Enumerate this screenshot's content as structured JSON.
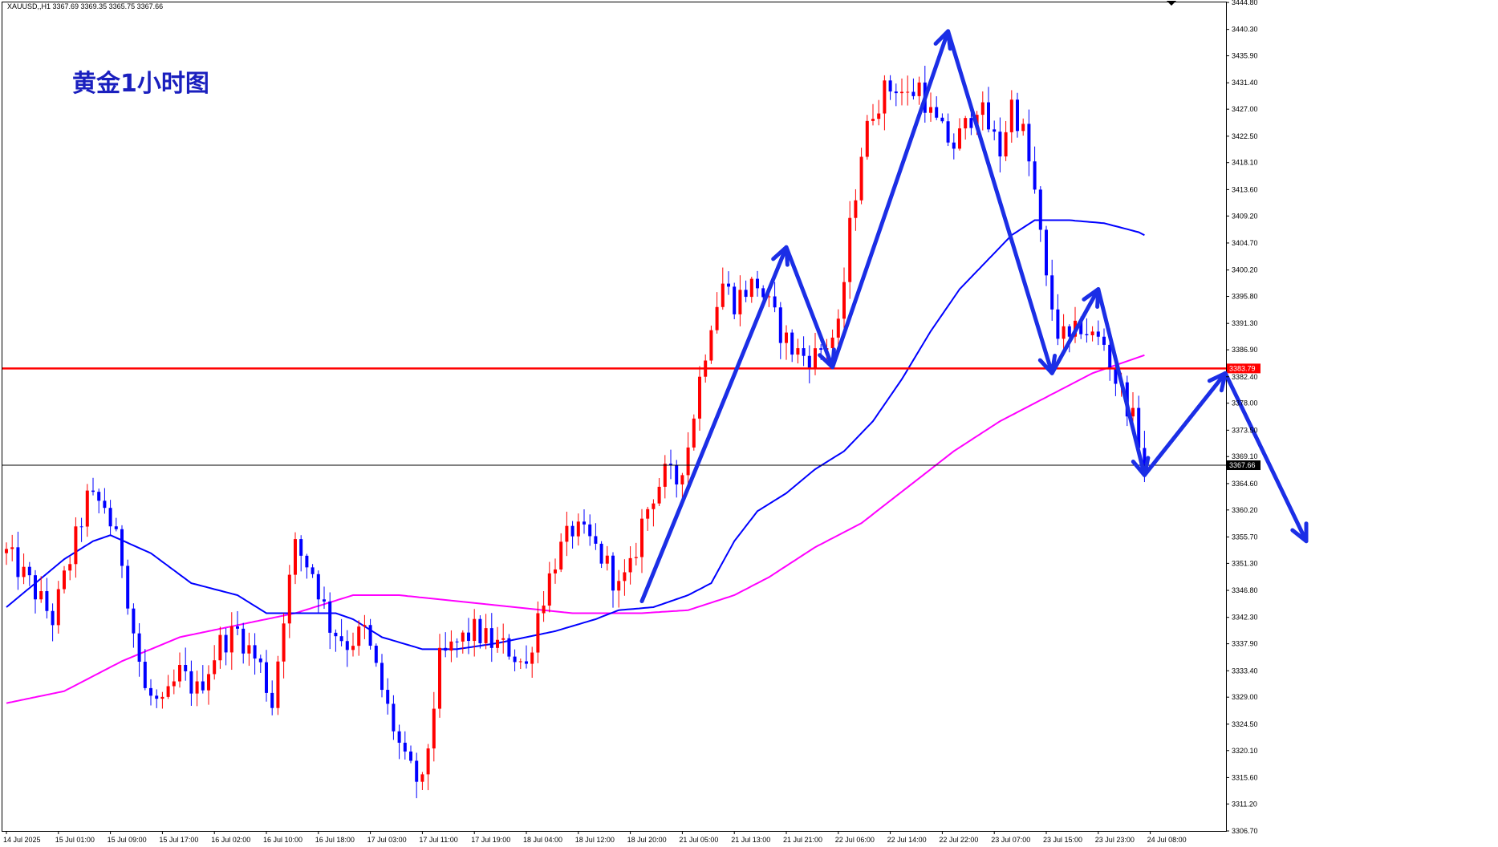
{
  "header": {
    "text": "XAUUSD,,H1  3367.69 3369.35 3365.75 3367.66"
  },
  "overlay_title": "黄金1小时图",
  "colors": {
    "bull": "#ff0000",
    "bear": "#0000ff",
    "ma_fast": "#0000ff",
    "ma_slow": "#ff00ff",
    "resistance": "#ff0000",
    "current": "#000000",
    "arrow": "#1b2ee6"
  },
  "chart_data": {
    "type": "candlestick",
    "symbol": "XAUUSD",
    "timeframe": "H1",
    "ylim": [
      3306.7,
      3444.8
    ],
    "y_ticks": [
      "3444.80",
      "3440.30",
      "3435.90",
      "3431.40",
      "3427.00",
      "3422.50",
      "3418.10",
      "3413.60",
      "3409.20",
      "3404.70",
      "3400.20",
      "3395.80",
      "3391.30",
      "3386.90",
      "3382.40",
      "3378.00",
      "3373.50",
      "3369.10",
      "3364.60",
      "3360.20",
      "3355.70",
      "3351.30",
      "3346.80",
      "3342.30",
      "3337.90",
      "3333.40",
      "3329.00",
      "3324.50",
      "3320.10",
      "3315.60",
      "3311.20",
      "3306.70"
    ],
    "x_labels": [
      "14 Jul 2025",
      "15 Jul 01:00",
      "15 Jul 09:00",
      "15 Jul 17:00",
      "16 Jul 02:00",
      "16 Jul 10:00",
      "16 Jul 18:00",
      "17 Jul 03:00",
      "17 Jul 11:00",
      "17 Jul 19:00",
      "18 Jul 04:00",
      "18 Jul 12:00",
      "18 Jul 20:00",
      "21 Jul 05:00",
      "21 Jul 13:00",
      "21 Jul 21:00",
      "22 Jul 06:00",
      "22 Jul 14:00",
      "22 Jul 22:00",
      "23 Jul 07:00",
      "23 Jul 15:00",
      "23 Jul 23:00",
      "24 Jul 08:00"
    ],
    "horizontal_lines": [
      {
        "price": 3383.79,
        "label": "3383.79",
        "color": "#ff0000"
      },
      {
        "price": 3367.66,
        "label": "3367.66",
        "color": "#000000"
      }
    ],
    "anchors": [
      [
        0,
        3353
      ],
      [
        4,
        3348
      ],
      [
        8,
        3342
      ],
      [
        11,
        3352
      ],
      [
        14,
        3362
      ],
      [
        17,
        3361
      ],
      [
        20,
        3352
      ],
      [
        22,
        3340
      ],
      [
        24,
        3330
      ],
      [
        27,
        3327
      ],
      [
        30,
        3333
      ],
      [
        33,
        3330
      ],
      [
        37,
        3338
      ],
      [
        40,
        3340
      ],
      [
        44,
        3334
      ],
      [
        46,
        3328
      ],
      [
        48,
        3343
      ],
      [
        50,
        3354
      ],
      [
        53,
        3350
      ],
      [
        56,
        3341
      ],
      [
        59,
        3338
      ],
      [
        62,
        3340
      ],
      [
        66,
        3327
      ],
      [
        69,
        3318
      ],
      [
        72,
        3314
      ],
      [
        75,
        3335
      ],
      [
        78,
        3338
      ],
      [
        81,
        3340
      ],
      [
        84,
        3338
      ],
      [
        87,
        3337
      ],
      [
        90,
        3334
      ],
      [
        92,
        3343
      ],
      [
        95,
        3352
      ],
      [
        98,
        3357
      ],
      [
        101,
        3355
      ],
      [
        104,
        3351
      ],
      [
        106,
        3347
      ],
      [
        108,
        3350
      ],
      [
        110,
        3358
      ],
      [
        112,
        3363
      ],
      [
        114,
        3366
      ],
      [
        116,
        3365
      ],
      [
        118,
        3371
      ],
      [
        120,
        3382
      ],
      [
        122,
        3392
      ],
      [
        124,
        3398
      ],
      [
        126,
        3395
      ],
      [
        128,
        3397
      ],
      [
        130,
        3398
      ],
      [
        132,
        3394
      ],
      [
        134,
        3390
      ],
      [
        136,
        3387
      ],
      [
        138,
        3386
      ],
      [
        140,
        3386
      ],
      [
        142,
        3388
      ],
      [
        144,
        3390
      ],
      [
        146,
        3407
      ],
      [
        148,
        3420
      ],
      [
        150,
        3427
      ],
      [
        152,
        3430
      ],
      [
        154,
        3431
      ],
      [
        156,
        3429
      ],
      [
        158,
        3431
      ],
      [
        160,
        3426
      ],
      [
        162,
        3423
      ],
      [
        164,
        3421
      ],
      [
        166,
        3424
      ],
      [
        168,
        3428
      ],
      [
        170,
        3424
      ],
      [
        172,
        3420
      ],
      [
        174,
        3428
      ],
      [
        176,
        3423
      ],
      [
        178,
        3413
      ],
      [
        180,
        3398
      ],
      [
        182,
        3390
      ],
      [
        184,
        3388
      ],
      [
        186,
        3391
      ],
      [
        188,
        3389
      ],
      [
        190,
        3388
      ],
      [
        192,
        3382
      ],
      [
        194,
        3378
      ],
      [
        196,
        3372
      ],
      [
        197,
        3367.66
      ]
    ],
    "ma_fast": [
      [
        0,
        3344
      ],
      [
        10,
        3352
      ],
      [
        15,
        3355
      ],
      [
        18,
        3356
      ],
      [
        25,
        3353
      ],
      [
        32,
        3348
      ],
      [
        40,
        3346
      ],
      [
        45,
        3343
      ],
      [
        52,
        3343
      ],
      [
        57,
        3343
      ],
      [
        60,
        3342
      ],
      [
        65,
        3339
      ],
      [
        72,
        3337
      ],
      [
        78,
        3337
      ],
      [
        85,
        3338
      ],
      [
        95,
        3340
      ],
      [
        102,
        3342
      ],
      [
        106,
        3343.5
      ],
      [
        112,
        3344
      ],
      [
        118,
        3346
      ],
      [
        122,
        3348
      ],
      [
        126,
        3355
      ],
      [
        130,
        3360
      ],
      [
        135,
        3363
      ],
      [
        140,
        3367
      ],
      [
        145,
        3370
      ],
      [
        150,
        3375
      ],
      [
        155,
        3382
      ],
      [
        160,
        3390
      ],
      [
        165,
        3397
      ],
      [
        170,
        3402
      ],
      [
        174,
        3406
      ],
      [
        178,
        3408.5
      ],
      [
        184,
        3408.5
      ],
      [
        190,
        3408
      ],
      [
        196,
        3406.5
      ],
      [
        197,
        3406
      ]
    ],
    "ma_slow": [
      [
        0,
        3328
      ],
      [
        10,
        3330
      ],
      [
        20,
        3335
      ],
      [
        30,
        3339
      ],
      [
        40,
        3341
      ],
      [
        50,
        3343
      ],
      [
        60,
        3346
      ],
      [
        68,
        3346
      ],
      [
        78,
        3345
      ],
      [
        88,
        3344
      ],
      [
        98,
        3343
      ],
      [
        110,
        3343
      ],
      [
        118,
        3343.5
      ],
      [
        126,
        3346
      ],
      [
        132,
        3349
      ],
      [
        140,
        3354
      ],
      [
        148,
        3358
      ],
      [
        156,
        3364
      ],
      [
        164,
        3370
      ],
      [
        172,
        3375
      ],
      [
        180,
        3379
      ],
      [
        188,
        3383
      ],
      [
        194,
        3385
      ],
      [
        197,
        3386
      ]
    ],
    "arrow_paths": [
      [
        [
          110,
          3345
        ],
        [
          135,
          3404
        ]
      ],
      [
        [
          135,
          3404
        ],
        [
          143,
          3384
        ]
      ],
      [
        [
          143,
          3384
        ],
        [
          163,
          3440
        ]
      ],
      [
        [
          163,
          3440
        ],
        [
          181,
          3383
        ]
      ],
      [
        [
          181,
          3383
        ],
        [
          189,
          3397
        ]
      ],
      [
        [
          189,
          3397
        ],
        [
          197,
          3366
        ]
      ],
      [
        [
          197,
          3366
        ],
        [
          211,
          3383
        ]
      ],
      [
        [
          211,
          3383
        ],
        [
          225,
          3355
        ]
      ]
    ]
  }
}
